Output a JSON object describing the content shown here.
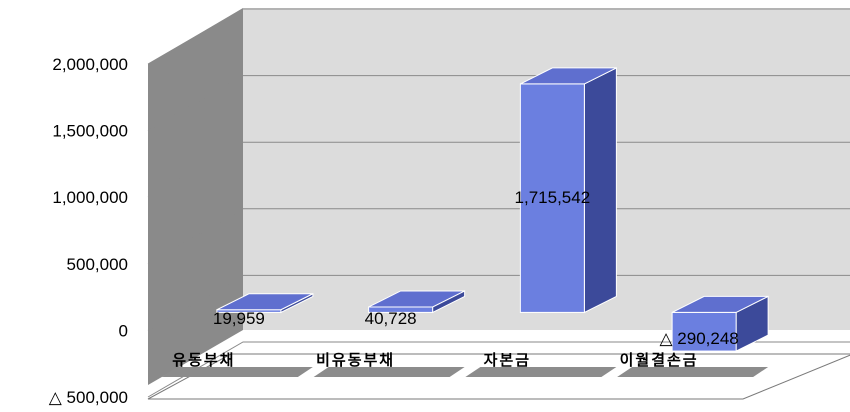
{
  "chart_data": {
    "type": "bar",
    "style": "3d-column",
    "categories": [
      "유동부채",
      "비유동부채",
      "자본금",
      "이월결손금"
    ],
    "values": [
      19959,
      40728,
      1715542,
      -290248
    ],
    "data_labels": [
      "19,959",
      "40,728",
      "1,715,542",
      "△ 290,248"
    ],
    "y_ticks": [
      {
        "value": 2000000,
        "label": "2,000,000"
      },
      {
        "value": 1500000,
        "label": "1,500,000"
      },
      {
        "value": 1000000,
        "label": "1,000,000"
      },
      {
        "value": 500000,
        "label": "500,000"
      },
      {
        "value": 0,
        "label": "0"
      },
      {
        "value": -500000,
        "label": "△ 500,000"
      }
    ],
    "ylim": [
      -500000,
      2000000
    ],
    "grid": true,
    "colors": {
      "bar_front": "#6b7fe0",
      "bar_top": "#5f6fcf",
      "bar_side": "#3c4a9a",
      "wall_back": "#dcdcdc",
      "wall_side": "#8a8a8a",
      "floor": "#ffffff",
      "floor_shadow": "#8c8c8c"
    }
  }
}
